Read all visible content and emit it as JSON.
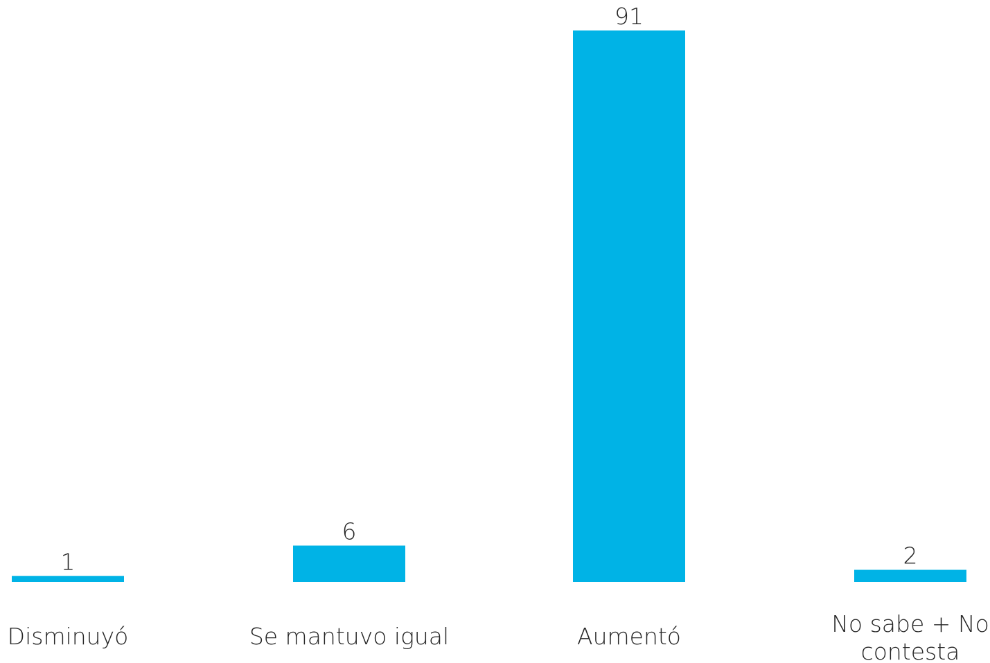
{
  "chart_data": {
    "type": "bar",
    "categories": [
      [
        "Disminuyó"
      ],
      [
        "Se mantuvo igual"
      ],
      [
        "Aumentó"
      ],
      [
        "No sabe + No",
        "contesta"
      ]
    ],
    "values": [
      1,
      6,
      91,
      2
    ],
    "ylim": [
      0,
      91
    ],
    "bar_color": "#00B3E6",
    "grid": false,
    "legend": "none"
  }
}
